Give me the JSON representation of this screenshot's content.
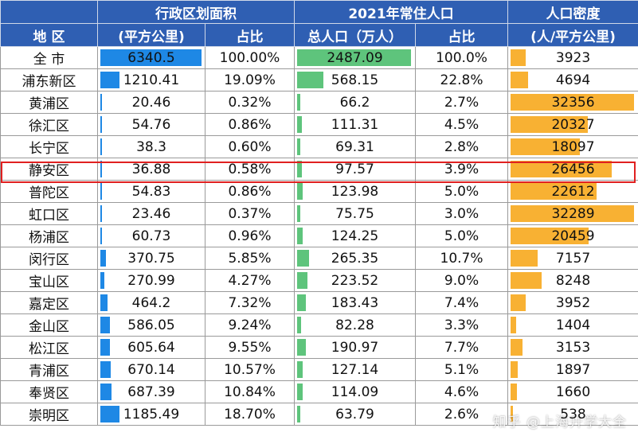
{
  "headers": {
    "area_group": "行政区划面积",
    "pop_group": "2021年常住人口",
    "density_line1": "人口密度",
    "district": "地  区",
    "area_unit": "(平方公里)",
    "area_share": "占比",
    "pop_total": "总人口（万人）",
    "pop_share": "占比",
    "density_unit": "(人/平方公里)"
  },
  "max": {
    "area": 6340.5,
    "pop": 2487.09,
    "density": 32356
  },
  "rows": [
    {
      "name": "全  市",
      "area": "6340.5",
      "area_share": "100.00%",
      "pop": "2487.09",
      "pop_share": "100.0%",
      "density": "3923"
    },
    {
      "name": "浦东新区",
      "area": "1210.41",
      "area_share": "19.09%",
      "pop": "568.15",
      "pop_share": "22.8%",
      "density": "4694"
    },
    {
      "name": "黄浦区",
      "area": "20.46",
      "area_share": "0.32%",
      "pop": "66.2",
      "pop_share": "2.7%",
      "density": "32356"
    },
    {
      "name": "徐汇区",
      "area": "54.76",
      "area_share": "0.86%",
      "pop": "111.31",
      "pop_share": "4.5%",
      "density": "20327"
    },
    {
      "name": "长宁区",
      "area": "38.3",
      "area_share": "0.60%",
      "pop": "69.31",
      "pop_share": "2.8%",
      "density": "18097"
    },
    {
      "name": "静安区",
      "area": "36.88",
      "area_share": "0.58%",
      "pop": "97.57",
      "pop_share": "3.9%",
      "density": "26456"
    },
    {
      "name": "普陀区",
      "area": "54.83",
      "area_share": "0.86%",
      "pop": "123.98",
      "pop_share": "5.0%",
      "density": "22612"
    },
    {
      "name": "虹口区",
      "area": "23.46",
      "area_share": "0.37%",
      "pop": "75.75",
      "pop_share": "3.0%",
      "density": "32289"
    },
    {
      "name": "杨浦区",
      "area": "60.73",
      "area_share": "0.96%",
      "pop": "124.25",
      "pop_share": "5.0%",
      "density": "20459"
    },
    {
      "name": "闵行区",
      "area": "370.75",
      "area_share": "5.85%",
      "pop": "265.35",
      "pop_share": "10.7%",
      "density": "7157"
    },
    {
      "name": "宝山区",
      "area": "270.99",
      "area_share": "4.27%",
      "pop": "223.52",
      "pop_share": "9.0%",
      "density": "8248"
    },
    {
      "name": "嘉定区",
      "area": "464.2",
      "area_share": "7.32%",
      "pop": "183.43",
      "pop_share": "7.4%",
      "density": "3952"
    },
    {
      "name": "金山区",
      "area": "586.05",
      "area_share": "9.24%",
      "pop": "82.28",
      "pop_share": "3.3%",
      "density": "1404"
    },
    {
      "name": "松江区",
      "area": "605.64",
      "area_share": "9.55%",
      "pop": "190.97",
      "pop_share": "7.7%",
      "density": "3153"
    },
    {
      "name": "青浦区",
      "area": "670.14",
      "area_share": "10.57%",
      "pop": "127.14",
      "pop_share": "5.1%",
      "density": "1897"
    },
    {
      "name": "奉贤区",
      "area": "687.39",
      "area_share": "10.84%",
      "pop": "114.09",
      "pop_share": "4.6%",
      "density": "1660"
    },
    {
      "name": "崇明区",
      "area": "1185.49",
      "area_share": "18.70%",
      "pop": "63.79",
      "pop_share": "2.6%",
      "density": "538"
    }
  ],
  "highlighted_row": "静安区",
  "watermark": "知乎 @上海升学大全",
  "colors": {
    "header": "#2f5fb3",
    "area_bar": "#1e88e5",
    "pop_bar": "#5ec47c",
    "density_bar": "#f8b133",
    "highlight": "#e02020"
  }
}
